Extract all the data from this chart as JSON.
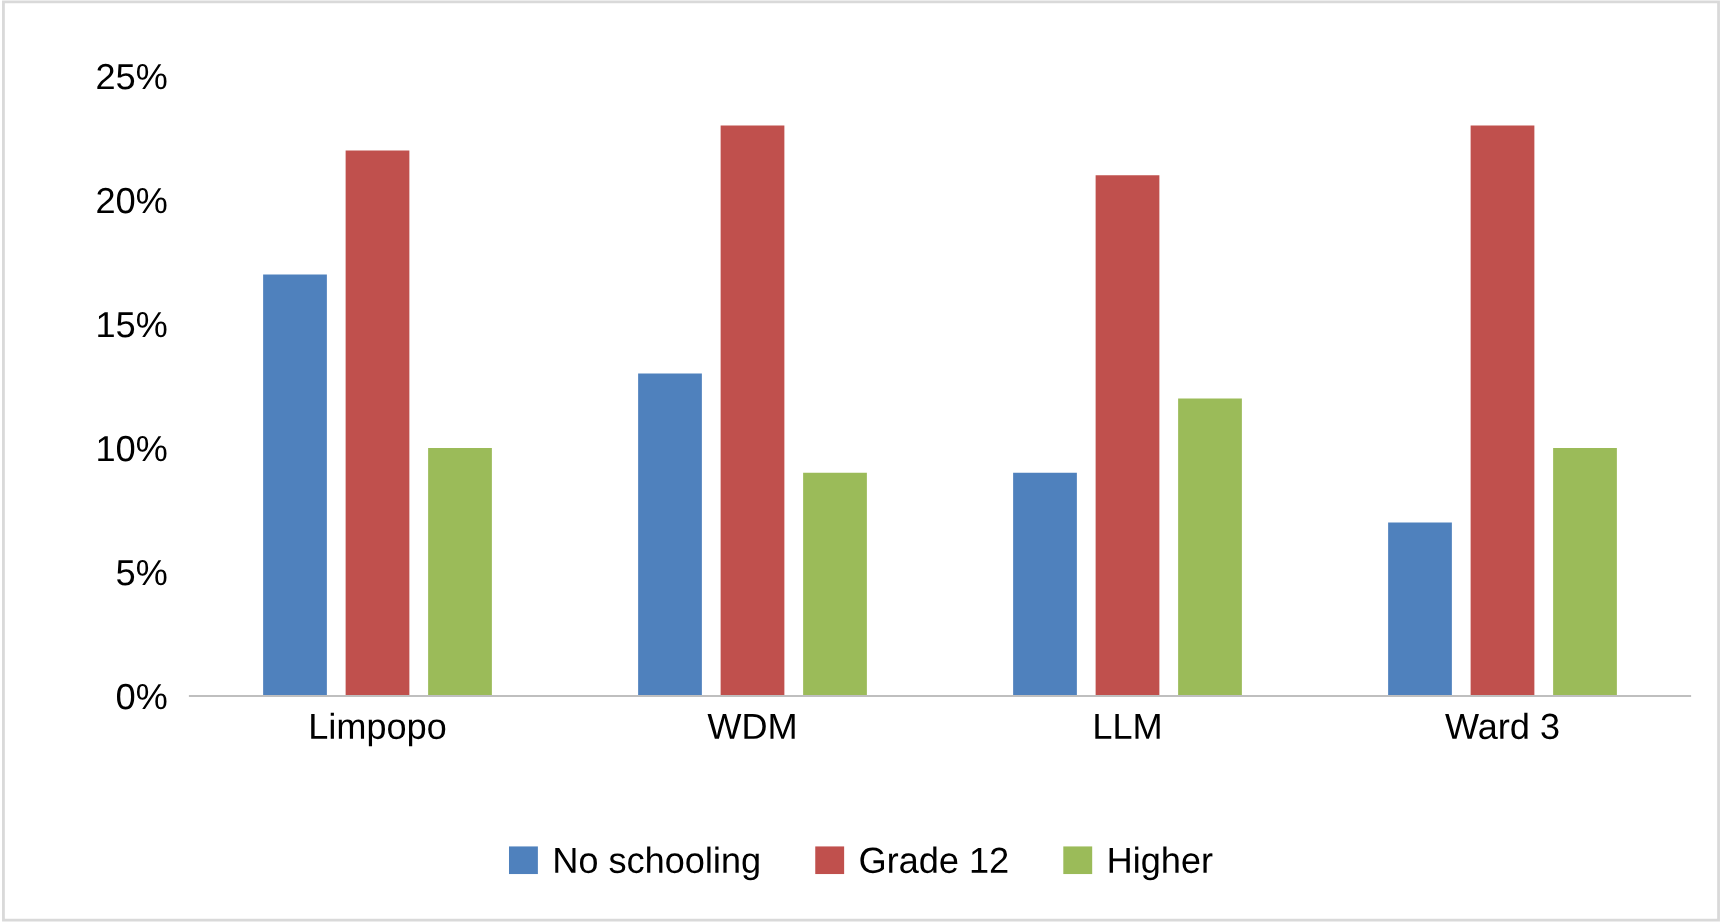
{
  "chart_data": {
    "type": "bar",
    "categories": [
      "Limpopo",
      "WDM",
      "LLM",
      "Ward 3"
    ],
    "series": [
      {
        "name": "No schooling",
        "color": "#4f81bd",
        "values": [
          17,
          13,
          9,
          7
        ]
      },
      {
        "name": "Grade 12",
        "color": "#c0504d",
        "values": [
          22,
          23,
          21,
          23
        ]
      },
      {
        "name": "Higher",
        "color": "#9bbb59",
        "values": [
          10,
          9,
          12,
          10
        ]
      }
    ],
    "ylim": [
      0,
      25
    ],
    "yticks": [
      {
        "value": 0,
        "label": "0%"
      },
      {
        "value": 5,
        "label": "5%"
      },
      {
        "value": 10,
        "label": "10%"
      },
      {
        "value": 15,
        "label": "15%"
      },
      {
        "value": 20,
        "label": "20%"
      },
      {
        "value": 25,
        "label": "25%"
      }
    ],
    "grid": false,
    "legend": "bottom"
  }
}
